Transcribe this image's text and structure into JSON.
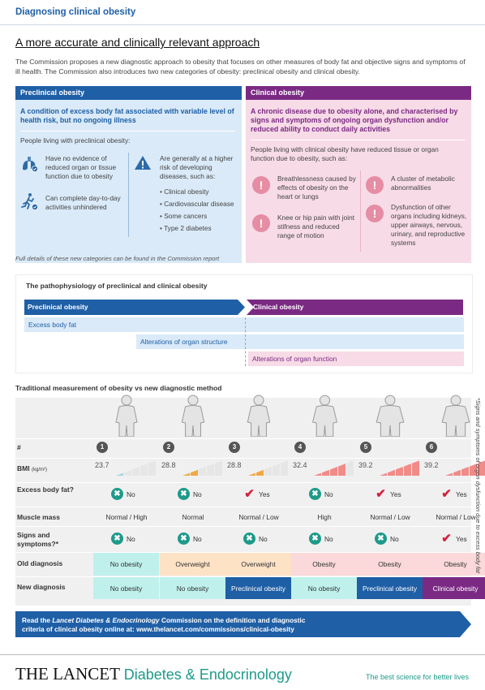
{
  "header": {
    "title": "Diagnosing clinical obesity",
    "subtitle": "A more accurate and clinically relevant approach",
    "intro": "The Commission proposes a new diagnostic approach to obesity that focuses on other measures of body fat and objective signs and symptoms of ill health. The Commission also introduces two new categories of obesity: preclinical obesity and clinical obesity."
  },
  "preclinical": {
    "title": "Preclinical obesity",
    "lead": "A condition of excess body fat associated with variable level of health risk, but no ongoing illness",
    "people": "People living with preclinical obesity:",
    "items": [
      "Have no evidence of reduced organ or tissue function due to obesity",
      "Can complete day-to-day activities unhindered"
    ],
    "risk": "Are generally at a higher risk of developing diseases, such as:",
    "diseases": [
      "Clinical obesity",
      "Cardiovascular disease",
      "Some cancers",
      "Type 2 diabetes"
    ],
    "colors": {
      "header": "#1f5fa6",
      "panel": "#daeaf8"
    }
  },
  "clinical": {
    "title": "Clinical obesity",
    "lead": "A chronic disease due to obesity alone, and characterised by signs and symptoms of ongoing organ dysfunction and/or reduced ability to conduct daily activities",
    "people": "People living with clinical obesity have reduced tissue or organ function due to obesity, such as:",
    "items": [
      "Breathlessness caused by effects of obesity on the heart or lungs",
      "A cluster of metabolic abnormalities",
      "Knee or hip pain with joint stifness and reduced range of motion",
      "Dysfunction of other organs including kidneys, upper airways, nervous, urinary, and reproductive systems"
    ],
    "colors": {
      "header": "#7b2a84",
      "panel": "#f7dbe6"
    }
  },
  "footnote": "Full details of these new categories can be found in the Commission report",
  "pathophysiology": {
    "title": "The pathophysiology of preclinical and clinical obesity",
    "preclinical_label": "Preclinical obesity",
    "clinical_label": "Clinical obesity",
    "bands": [
      "Excess body fat",
      "Alterations of organ structure",
      "Alterations of organ function"
    ]
  },
  "comparison": {
    "title": "Traditional measurement of obesity vs new diagnostic method",
    "row_labels": {
      "num": "#",
      "bmi": "BMI",
      "bmi_unit": "(kg/m²)",
      "excess": "Excess body fat?",
      "muscle": "Muscle mass",
      "signs": "Signs and symptoms?*",
      "old": "Old diagnosis",
      "new": "New diagnosis"
    },
    "cases": [
      {
        "num": "1",
        "bmi": "23.7",
        "excess": "No",
        "muscle": "Normal / High",
        "signs": "No",
        "old": "No obesity",
        "new": "No obesity"
      },
      {
        "num": "2",
        "bmi": "28.8",
        "excess": "No",
        "muscle": "Normal",
        "signs": "No",
        "old": "Overweight",
        "new": "No obesity"
      },
      {
        "num": "3",
        "bmi": "28.8",
        "excess": "Yes",
        "muscle": "Normal / Low",
        "signs": "No",
        "old": "Overweight",
        "new": "Preclinical obesity"
      },
      {
        "num": "4",
        "bmi": "32.4",
        "excess": "No",
        "muscle": "High",
        "signs": "No",
        "old": "Obesity",
        "new": "No obesity"
      },
      {
        "num": "5",
        "bmi": "39.2",
        "excess": "Yes",
        "muscle": "Normal / Low",
        "signs": "No",
        "old": "Obesity",
        "new": "Preclinical obesity"
      },
      {
        "num": "6",
        "bmi": "39.2",
        "excess": "Yes",
        "muscle": "Normal / Low",
        "signs": "Yes",
        "old": "Obesity",
        "new": "Clinical obesity"
      }
    ],
    "side_note": "*Signs and symptoms of organ dysfunction due to excess body fat"
  },
  "banner": {
    "line1_pre": "Read the ",
    "line1_journal": "Lancet Diabetes & Endocrinology",
    "line1_post": " Commission on the definition and diagnostic",
    "line2": "criteria of clinical obesity online at: www.thelancet.com/commissions/clinical-obesity"
  },
  "footer": {
    "brand": "THE LANCET",
    "journal": "Diabetes & Endocrinology",
    "tagline": "The best science for better lives"
  }
}
